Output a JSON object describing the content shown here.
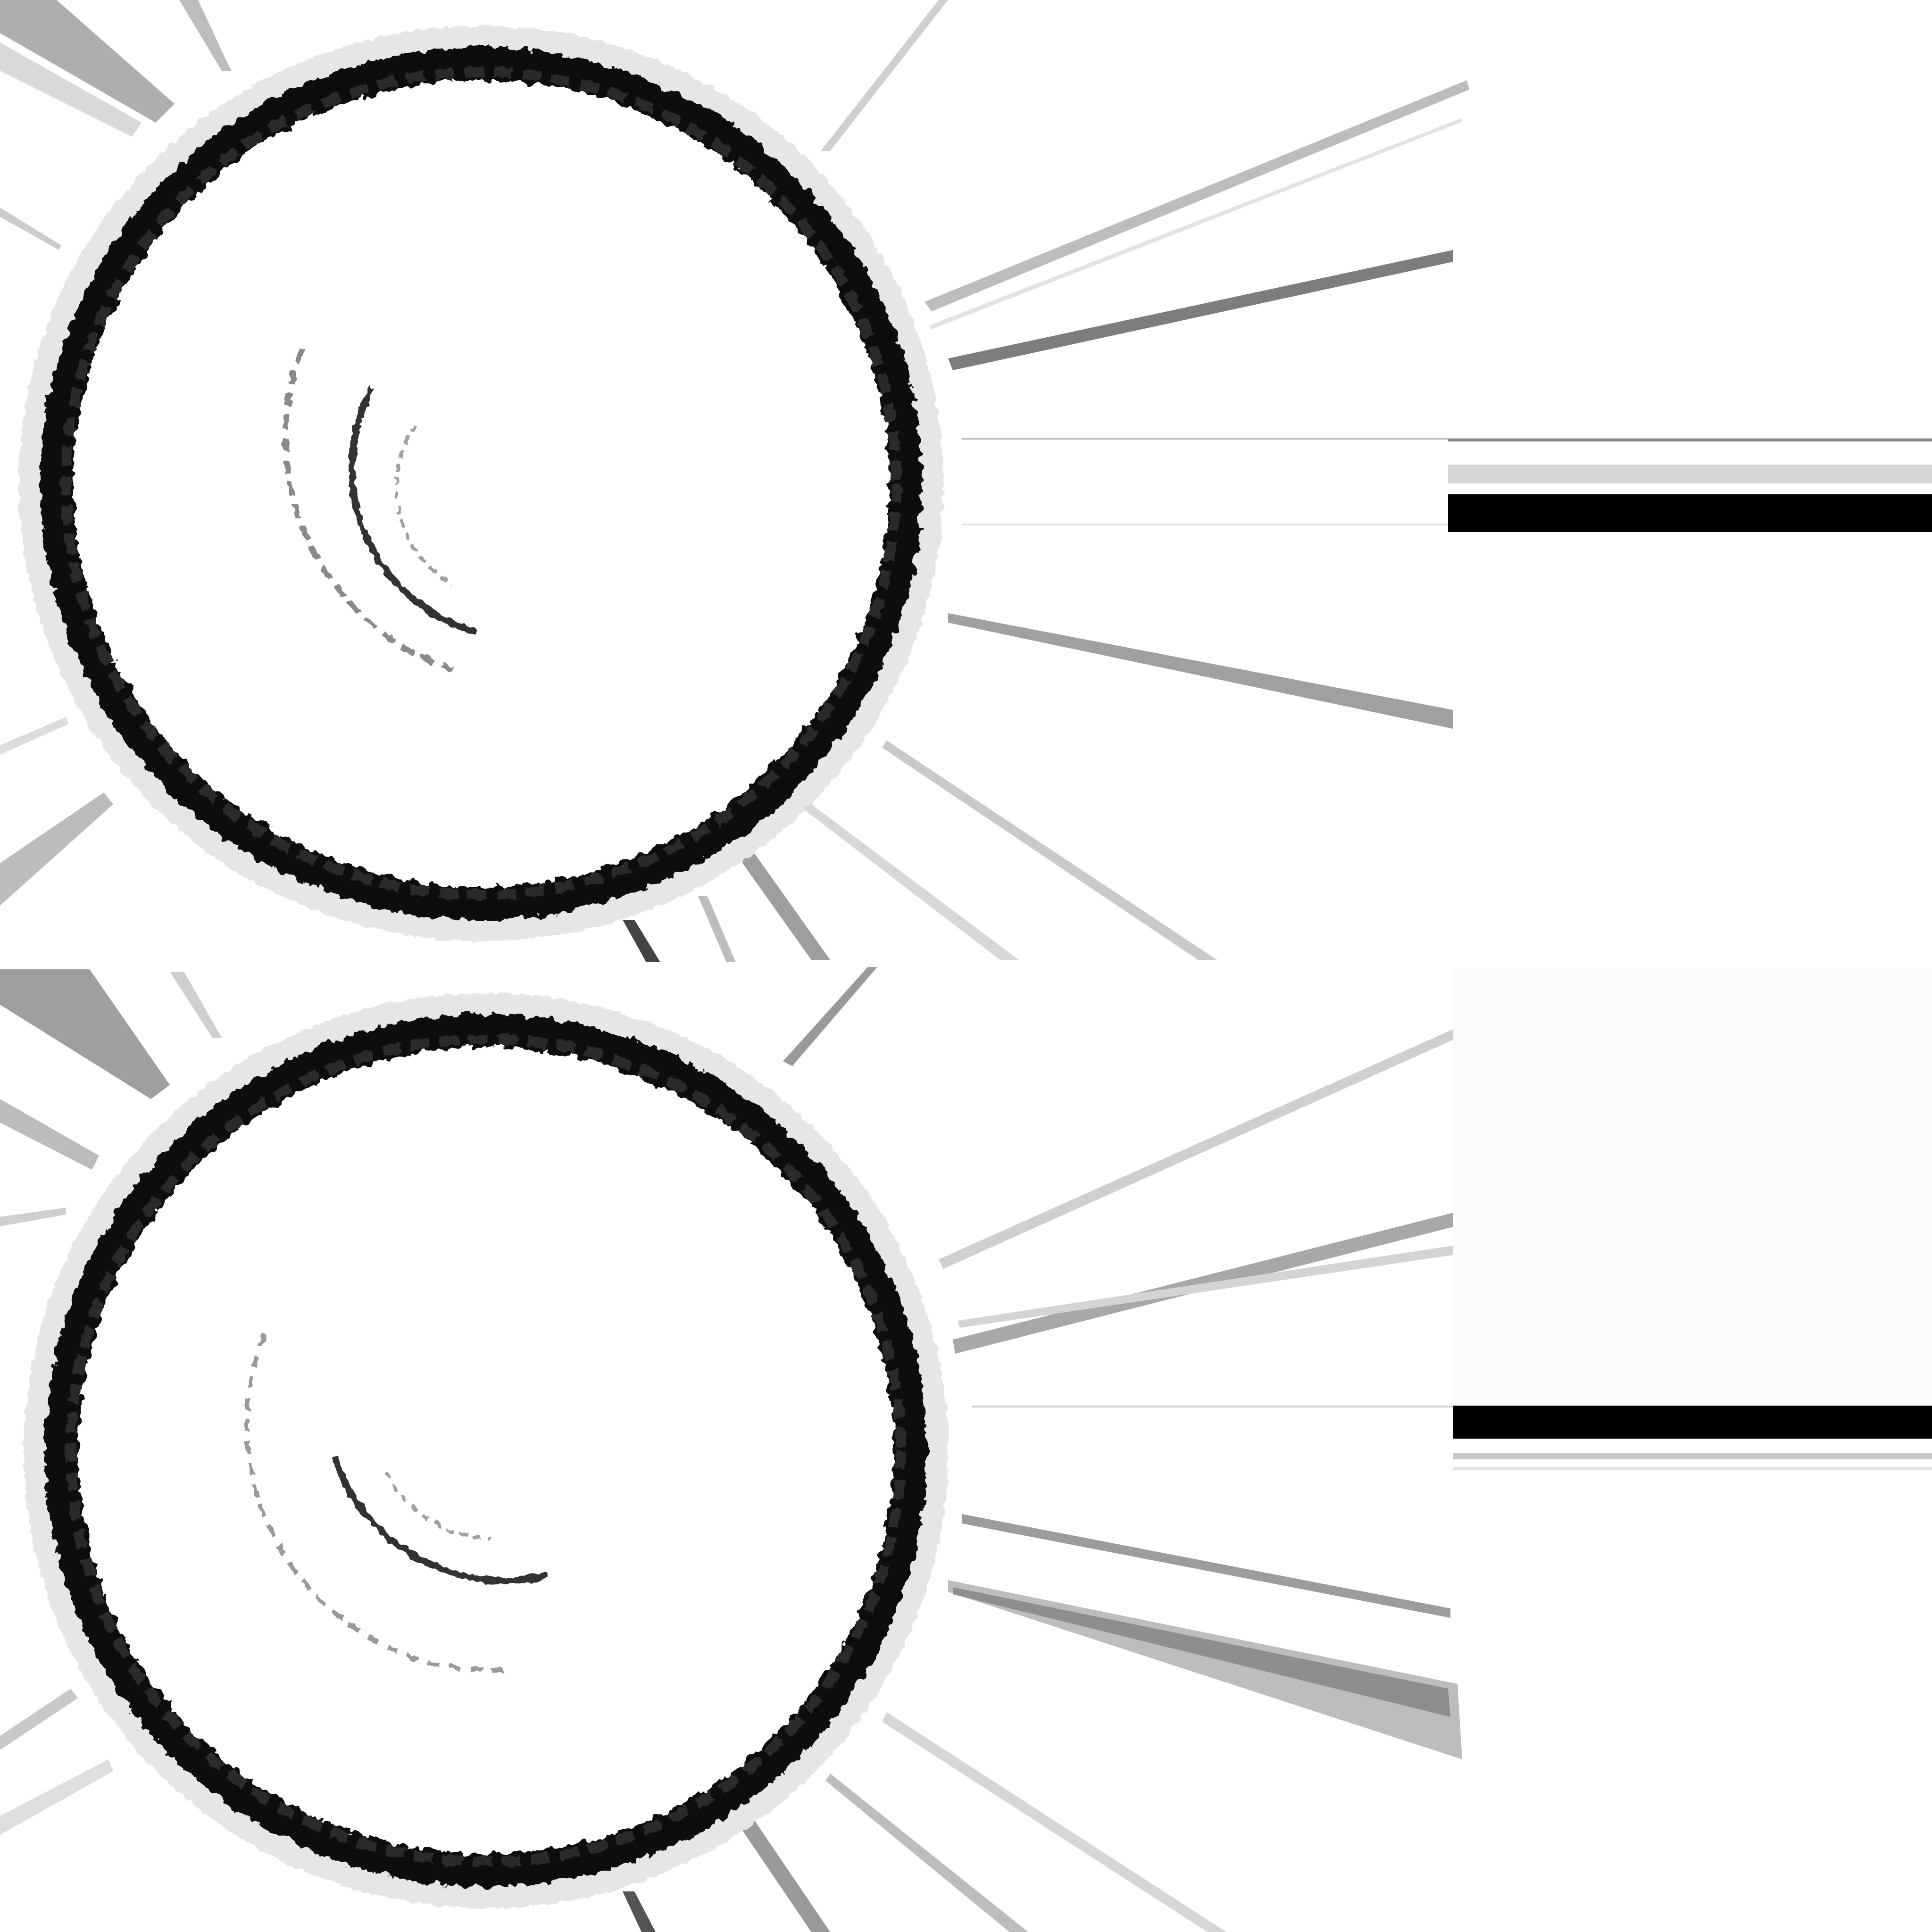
{
  "texture": {
    "colors": {
      "background": "#ffffff",
      "ink": "#111111",
      "mid_gray": "#8a8a8a",
      "light_gray": "#cfcfcf"
    },
    "panels": [
      {
        "label": "",
        "icon": "circle-ring-with-inner-arcs"
      },
      {
        "label": "",
        "icon": "circle-ring-with-inner-arcs"
      }
    ]
  }
}
